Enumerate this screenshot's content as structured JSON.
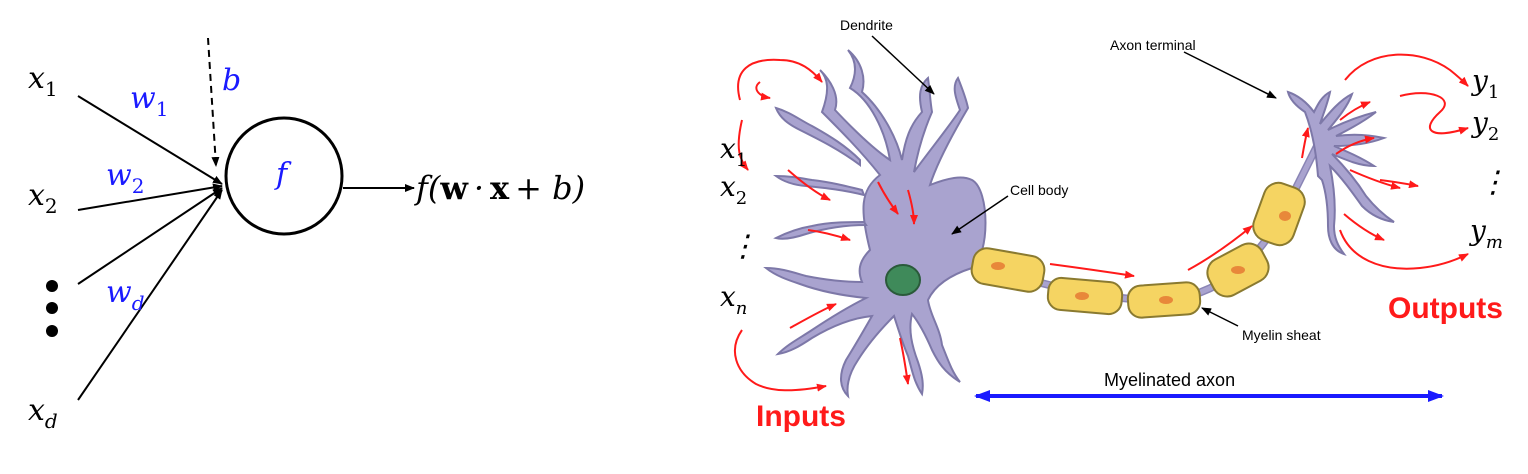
{
  "perceptron": {
    "inputs": [
      "x",
      "x",
      "x"
    ],
    "input_subscripts": [
      "1",
      "2",
      "d"
    ],
    "weights": [
      "w",
      "w",
      "w"
    ],
    "weight_subscripts": [
      "1",
      "2",
      "d"
    ],
    "bias": "b",
    "activation": "f",
    "output": {
      "prefix": "f(",
      "w": "w",
      "dot": "·",
      "x": "x",
      "suffix": "+ b)"
    },
    "colors": {
      "weight_text": "#1a1aff",
      "line": "#000000"
    }
  },
  "neuron": {
    "inputs": [
      "x",
      "x",
      "x"
    ],
    "input_subscripts": [
      "1",
      "2",
      "n"
    ],
    "input_dots": "⋮",
    "outputs": [
      "y",
      "y",
      "y"
    ],
    "output_subscripts": [
      "1",
      "2",
      "m"
    ],
    "output_dots": "⋮",
    "labels": {
      "dendrite": "Dendrite",
      "axon_terminal": "Axon terminal",
      "cell_body": "Cell body",
      "myelin_sheat": "Myelin sheat",
      "myelinated_axon": "Myelinated axon",
      "inputs": "Inputs",
      "outputs": "Outputs"
    },
    "colors": {
      "cell": "#a9a3cf",
      "nucleus": "#3f8a5a",
      "myelin": "#f5d462",
      "flow_arrow": "#ff1a1a",
      "axon_arrow": "#1a1aff"
    }
  }
}
